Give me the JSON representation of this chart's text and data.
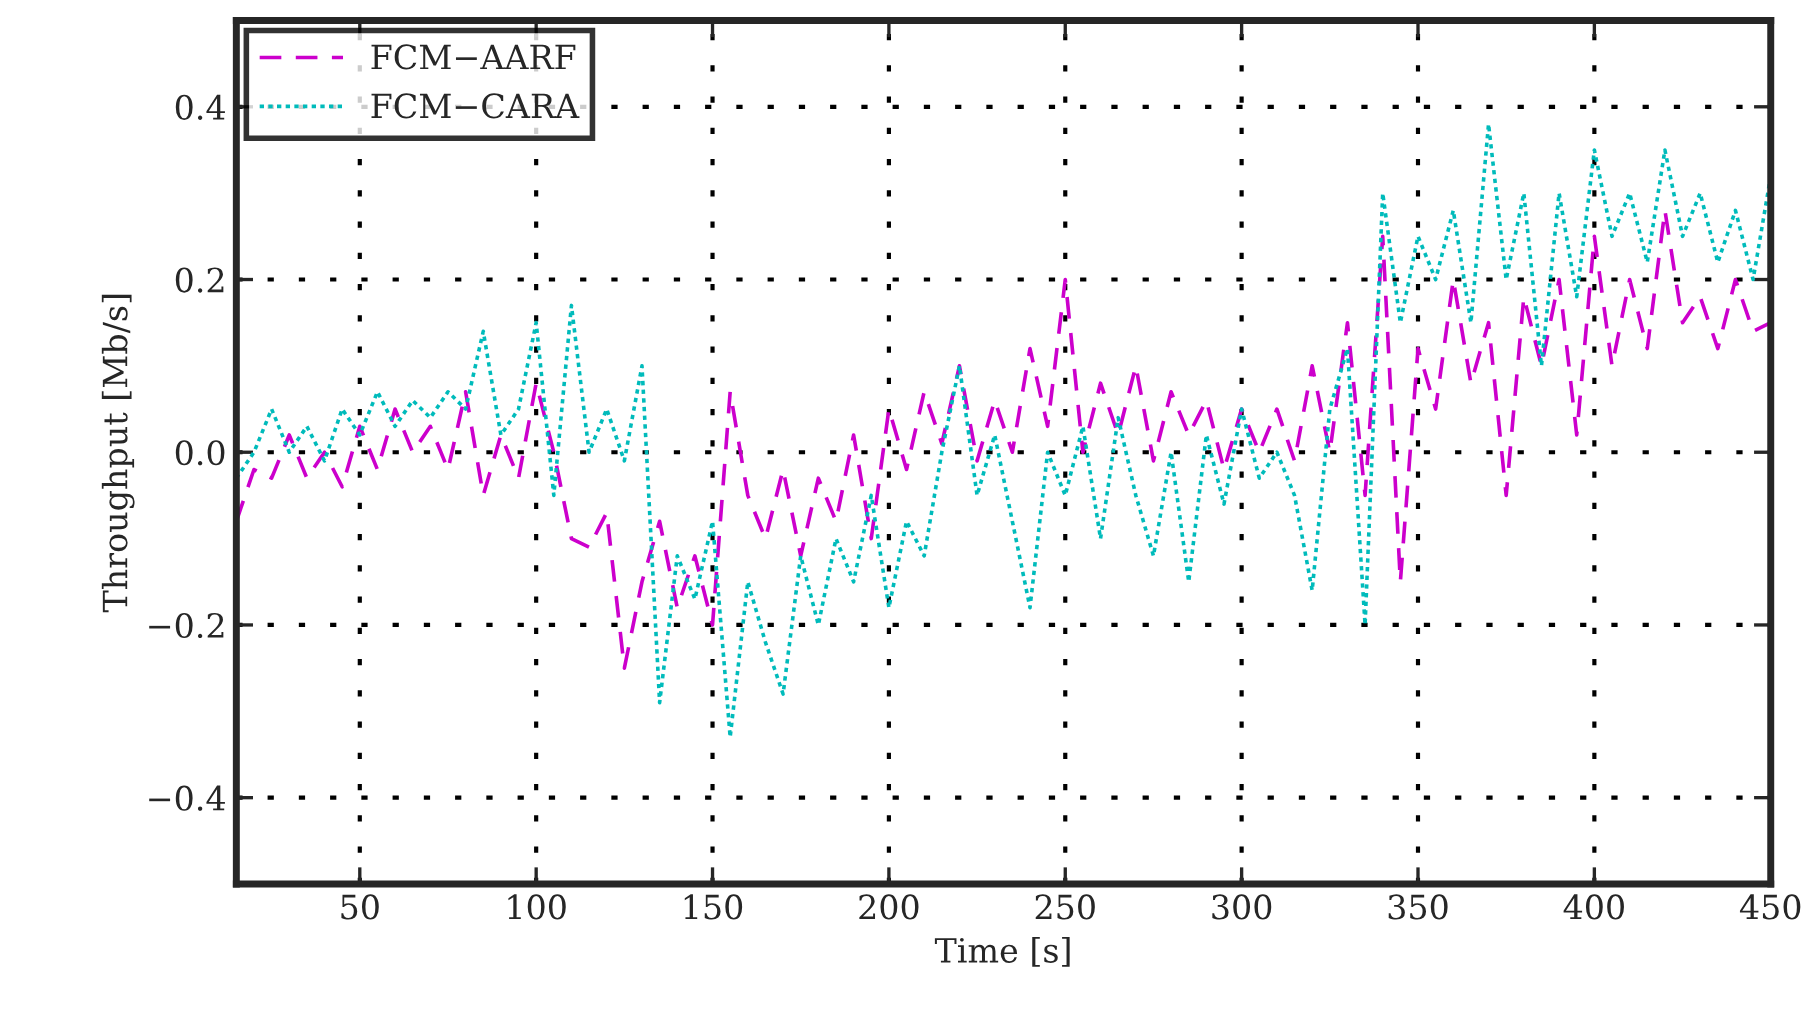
{
  "chart_data": {
    "type": "line",
    "xlabel": "Time [s]",
    "ylabel": "Throughput [Mb/s]",
    "x": [
      15,
      20,
      25,
      30,
      35,
      40,
      45,
      50,
      55,
      60,
      65,
      70,
      75,
      80,
      85,
      90,
      95,
      100,
      105,
      110,
      115,
      120,
      125,
      130,
      135,
      140,
      145,
      150,
      155,
      160,
      165,
      170,
      175,
      180,
      185,
      190,
      195,
      200,
      205,
      210,
      215,
      220,
      225,
      230,
      235,
      240,
      245,
      250,
      255,
      260,
      265,
      270,
      275,
      280,
      285,
      290,
      295,
      300,
      305,
      310,
      315,
      320,
      325,
      330,
      335,
      340,
      345,
      350,
      355,
      360,
      365,
      370,
      375,
      380,
      385,
      390,
      395,
      400,
      405,
      410,
      415,
      420,
      425,
      430,
      435,
      440,
      445,
      450
    ],
    "series": [
      {
        "name": "FCM−AARF",
        "color": "#cc00cc",
        "line_style": "dashed",
        "values": [
          -0.08,
          -0.02,
          -0.03,
          0.02,
          -0.03,
          0.0,
          -0.04,
          0.03,
          -0.02,
          0.05,
          0.0,
          0.03,
          -0.02,
          0.07,
          -0.05,
          0.02,
          -0.03,
          0.08,
          0.0,
          -0.1,
          -0.11,
          -0.07,
          -0.25,
          -0.15,
          -0.08,
          -0.18,
          -0.12,
          -0.2,
          0.07,
          -0.05,
          -0.1,
          -0.02,
          -0.12,
          -0.03,
          -0.08,
          0.02,
          -0.1,
          0.05,
          -0.02,
          0.07,
          0.01,
          0.1,
          -0.01,
          0.06,
          0.0,
          0.12,
          0.03,
          0.2,
          0.0,
          0.08,
          0.02,
          0.1,
          -0.01,
          0.07,
          0.02,
          0.06,
          -0.02,
          0.05,
          0.0,
          0.05,
          -0.01,
          0.1,
          0.0,
          0.15,
          -0.05,
          0.25,
          -0.15,
          0.12,
          0.05,
          0.2,
          0.08,
          0.15,
          -0.05,
          0.18,
          0.1,
          0.2,
          0.02,
          0.25,
          0.1,
          0.2,
          0.12,
          0.28,
          0.15,
          0.18,
          0.12,
          0.2,
          0.14,
          0.15
        ]
      },
      {
        "name": "FCM−CARA",
        "color": "#00bbbb",
        "line_style": "dotted",
        "values": [
          -0.03,
          0.0,
          0.05,
          0.0,
          0.03,
          -0.01,
          0.05,
          0.02,
          0.07,
          0.03,
          0.06,
          0.04,
          0.07,
          0.05,
          0.14,
          0.02,
          0.05,
          0.15,
          -0.05,
          0.17,
          0.0,
          0.05,
          -0.01,
          0.1,
          -0.29,
          -0.12,
          -0.17,
          -0.08,
          -0.33,
          -0.15,
          -0.22,
          -0.28,
          -0.12,
          -0.2,
          -0.1,
          -0.15,
          -0.05,
          -0.18,
          -0.08,
          -0.12,
          0.0,
          0.1,
          -0.05,
          0.02,
          -0.08,
          -0.18,
          0.0,
          -0.05,
          0.03,
          -0.1,
          0.04,
          -0.05,
          -0.12,
          0.0,
          -0.15,
          0.02,
          -0.06,
          0.05,
          -0.03,
          0.0,
          -0.05,
          -0.16,
          0.05,
          0.12,
          -0.2,
          0.3,
          0.15,
          0.25,
          0.2,
          0.28,
          0.15,
          0.38,
          0.2,
          0.3,
          0.1,
          0.3,
          0.18,
          0.35,
          0.25,
          0.3,
          0.22,
          0.35,
          0.25,
          0.3,
          0.22,
          0.28,
          0.2,
          0.32
        ]
      }
    ],
    "xlim": [
      15,
      450
    ],
    "xticks": [
      50,
      100,
      150,
      200,
      250,
      300,
      350,
      400,
      450
    ],
    "ylim": [
      -0.5,
      0.5
    ],
    "yticks": [
      {
        "value": -0.4,
        "label": "−0.4"
      },
      {
        "value": -0.2,
        "label": "−0.2"
      },
      {
        "value": 0.0,
        "label": "0.0"
      },
      {
        "value": 0.2,
        "label": "0.2"
      },
      {
        "value": 0.4,
        "label": "0.4"
      }
    ],
    "grid": true,
    "legend": "top left",
    "marker": "none"
  }
}
